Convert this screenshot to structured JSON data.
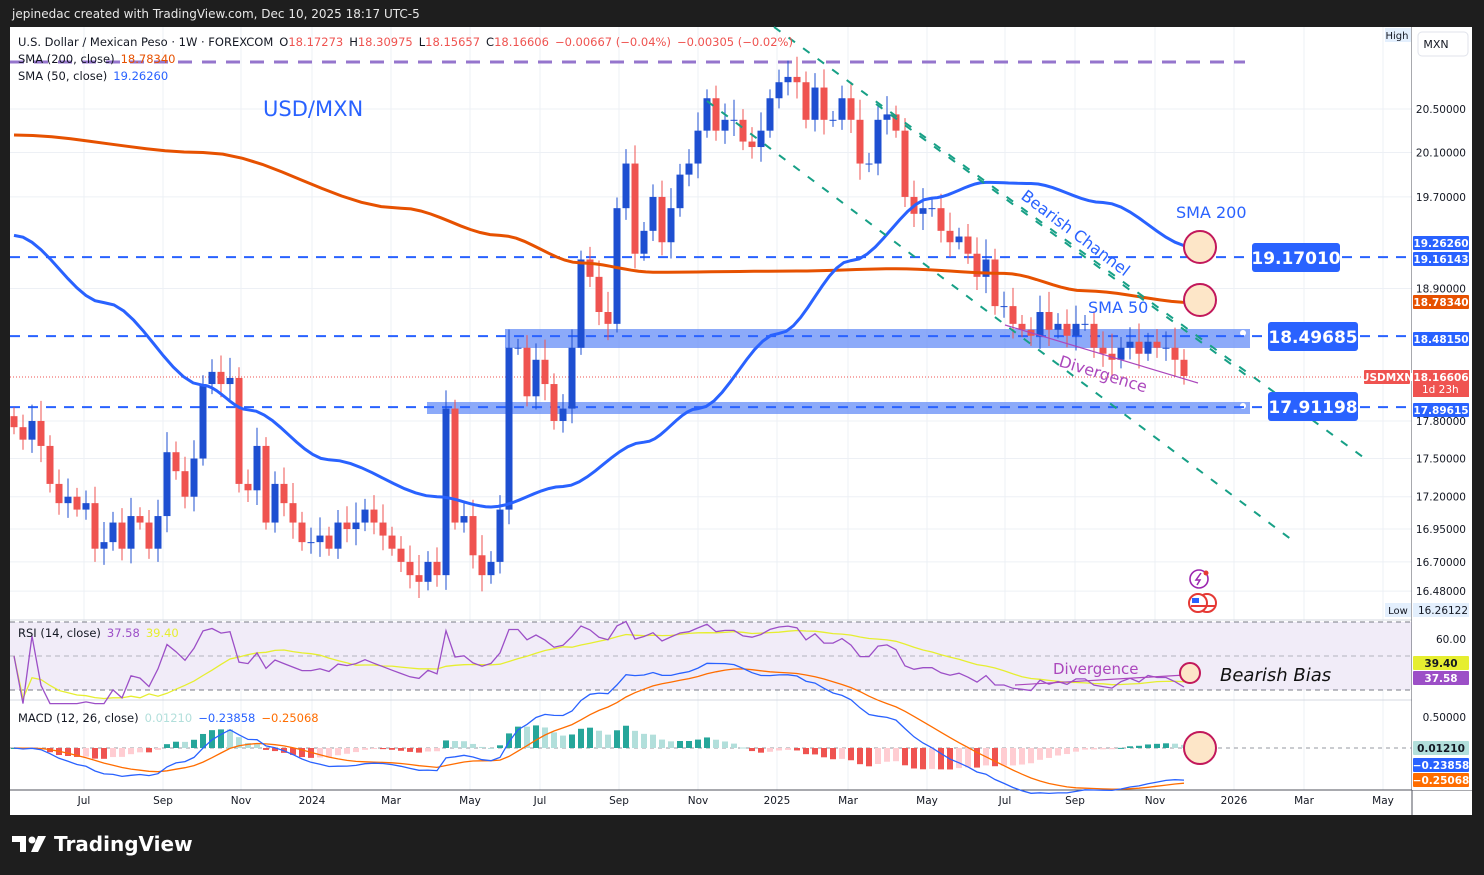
{
  "header": {
    "credit": "jepinedac created with TradingView.com, Dec 10, 2025 18:17 UTC-5"
  },
  "legend": {
    "symbol": "U.S. Dollar / Mexican Peso · 1W · FOREXCOM",
    "o_label": "O",
    "o": "18.17273",
    "h_label": "H",
    "h": "18.30975",
    "l_label": "L",
    "l": "18.15657",
    "c_label": "C",
    "c": "18.16606",
    "change": "−0.00667 (−0.04%)",
    "change2": "−0.00305 (−0.02%)",
    "sma200_label": "SMA (200, close)",
    "sma200_value": "18.78340",
    "sma50_label": "SMA (50, close)",
    "sma50_value": "19.26260",
    "rsi_label": "RSI (14, close)",
    "rsi_value": "37.58",
    "rsi_ma_value": "39.40",
    "macd_label": "MACD (12, 26, close)",
    "macd_hist": "0.01210",
    "macd_value": "−0.23858",
    "macd_signal": "−0.25068"
  },
  "annotations": {
    "title": "USD/MXN",
    "bearish_channel": "Bearish Channel",
    "sma200": "SMA 200",
    "sma50": "SMA 50",
    "divergence": "Divergence",
    "rsi_divergence": "Divergence",
    "bearish_bias": "Bearish Bias",
    "level1": "19.17010",
    "level2": "18.49685",
    "level3": "17.91198"
  },
  "price_axis": {
    "currency": "MXN",
    "high_label": "High",
    "low_label": "Low",
    "low_value": "16.26122",
    "ticks": [
      "20.50000",
      "20.10000",
      "19.70000",
      "18.90000",
      "17.80000",
      "17.50000",
      "17.20000",
      "16.95000",
      "16.70000",
      "16.48000"
    ],
    "tag_sma50": "19.26260",
    "tag_level1": "19.16143",
    "tag_sma200": "18.78340",
    "tag_level2": "18.48150",
    "tag_symbol": "USDMXN",
    "tag_last": "18.16606",
    "tag_countdown": "1d 23h",
    "tag_level3": "17.89615",
    "rsi_tick": "60.00",
    "rsi_ma_tag": "39.40",
    "rsi_tag": "37.58",
    "macd_tick": "0.50000",
    "macd_hist_tag": "0.01210",
    "macd_tag": "−0.23858",
    "macd_signal_tag": "−0.25068"
  },
  "time_axis": [
    "Jul",
    "Sep",
    "Nov",
    "2024",
    "Mar",
    "May",
    "Jul",
    "Sep",
    "Nov",
    "2025",
    "Mar",
    "May",
    "Jul",
    "Sep",
    "Nov",
    "2026",
    "Mar",
    "May"
  ],
  "brand": "TradingView",
  "colors": {
    "up": "#1e4fd1",
    "down": "#ef5350",
    "sma200": "#e65100",
    "sma50": "#2962ff",
    "level": "#2962ff",
    "channel": "#17a086",
    "divergence": "#ab47bc",
    "rsi": "#9c4fc7",
    "rsi_ma": "#e6ee30"
  },
  "chart_data": {
    "type": "candlestick",
    "symbol": "USDMXN",
    "interval": "1W",
    "y_scale": "log",
    "start": "2023-05-08",
    "closes": [
      17.75,
      17.65,
      17.8,
      17.6,
      17.3,
      17.15,
      17.2,
      17.1,
      17.15,
      16.8,
      16.85,
      17.0,
      16.8,
      17.05,
      17.0,
      16.8,
      17.05,
      17.55,
      17.4,
      17.2,
      17.5,
      18.1,
      18.2,
      18.1,
      18.15,
      17.3,
      17.25,
      17.6,
      17.0,
      17.3,
      17.15,
      17.0,
      16.85,
      16.85,
      16.9,
      16.8,
      17.0,
      16.95,
      17.0,
      17.1,
      17.0,
      16.9,
      16.8,
      16.7,
      16.6,
      16.55,
      16.7,
      16.6,
      17.9,
      17.0,
      17.05,
      16.75,
      16.6,
      16.7,
      17.1,
      18.4,
      18.4,
      18.0,
      18.3,
      18.1,
      17.8,
      17.9,
      18.4,
      19.15,
      19.0,
      18.7,
      18.6,
      19.6,
      20.0,
      19.2,
      19.4,
      19.7,
      19.3,
      19.6,
      19.9,
      20.0,
      20.3,
      20.6,
      20.3,
      20.4,
      20.4,
      20.2,
      20.15,
      20.3,
      20.6,
      20.75,
      20.8,
      20.75,
      20.4,
      20.7,
      20.4,
      20.4,
      20.6,
      20.4,
      20.0,
      20.0,
      20.4,
      20.45,
      20.3,
      19.7,
      19.55,
      19.6,
      19.6,
      19.4,
      19.3,
      19.35,
      19.2,
      19.0,
      19.15,
      18.75,
      18.75,
      18.6,
      18.55,
      18.5,
      18.7,
      18.55,
      18.6,
      18.5,
      18.6,
      18.6,
      18.4,
      18.35,
      18.3,
      18.4,
      18.45,
      18.35,
      18.45,
      18.4,
      18.4,
      18.3,
      18.16606
    ],
    "sma200": [
      [
        "2023-05-08",
        20.26
      ],
      [
        "2023-10-02",
        20.1
      ],
      [
        "2024-03-04",
        19.6
      ],
      [
        "2024-05-20",
        19.36
      ],
      [
        "2024-07-22",
        19.12
      ],
      [
        "2024-09-16",
        19.04
      ],
      [
        "2025-01-06",
        19.05
      ],
      [
        "2025-03-24",
        19.07
      ],
      [
        "2025-06-16",
        19.03
      ],
      [
        "2025-08-18",
        18.88
      ],
      [
        "2025-11-10",
        18.78
      ]
    ],
    "sma50": [
      [
        "2023-05-08",
        19.36
      ],
      [
        "2023-07-17",
        18.78
      ],
      [
        "2023-10-02",
        18.09
      ],
      [
        "2023-11-06",
        17.89
      ],
      [
        "2024-01-08",
        17.49
      ],
      [
        "2024-04-01",
        17.2
      ],
      [
        "2024-05-13",
        17.12
      ],
      [
        "2024-07-08",
        17.28
      ],
      [
        "2024-09-09",
        17.63
      ],
      [
        "2024-10-21",
        17.9
      ],
      [
        "2024-12-23",
        18.52
      ],
      [
        "2025-02-17",
        19.14
      ],
      [
        "2025-04-21",
        19.69
      ],
      [
        "2025-06-02",
        19.83
      ],
      [
        "2025-07-07",
        19.82
      ],
      [
        "2025-09-01",
        19.65
      ],
      [
        "2025-11-10",
        19.26
      ]
    ],
    "levels": [
      19.1701,
      18.49685,
      17.91198
    ],
    "high": 20.83,
    "low": 16.26122,
    "rsi_levels": [
      70,
      50,
      30
    ]
  }
}
